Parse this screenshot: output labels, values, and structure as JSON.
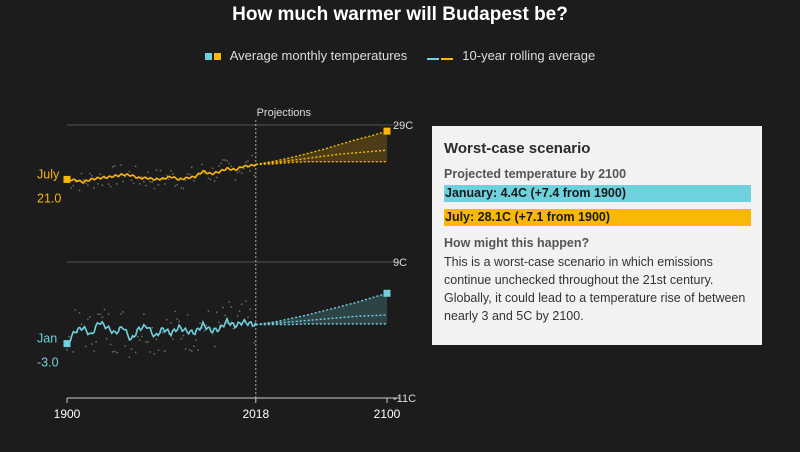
{
  "title": "How much warmer will Budapest be?",
  "legend": {
    "monthly_label": "Average monthly temperatures",
    "rolling_label": "10-year rolling average"
  },
  "colors": {
    "january": "#6fd1de",
    "july": "#f9b707",
    "background": "#1c1c1c",
    "grid": "#555555",
    "box": "#f2f2f2"
  },
  "chart_data": {
    "type": "line",
    "title": "How much warmer will Budapest be?",
    "x_ticks": [
      "1900",
      "2018",
      "2100"
    ],
    "y_tick_labels": [
      "29C",
      "9C",
      "-11C"
    ],
    "projection_label": "Projections",
    "projection_start_year": 2018,
    "series": [
      {
        "name": "July",
        "start_label": "21.0",
        "start_value": 21.0,
        "historical_x": [
          1900,
          1905,
          1910,
          1915,
          1920,
          1925,
          1930,
          1935,
          1940,
          1945,
          1950,
          1955,
          1960,
          1965,
          1970,
          1975,
          1980,
          1985,
          1990,
          1995,
          2000,
          2005,
          2010,
          2015,
          2018
        ],
        "historical_y": [
          21.0,
          20.9,
          20.6,
          21.0,
          21.2,
          21.3,
          21.5,
          21.7,
          21.6,
          21.2,
          21.2,
          21.0,
          21.1,
          21.4,
          21.0,
          21.2,
          21.4,
          22.2,
          21.8,
          22.1,
          22.6,
          22.4,
          22.9,
          23.0,
          23.2
        ],
        "projection_x": [
          2018,
          2030,
          2040,
          2050,
          2060,
          2070,
          2080,
          2090,
          2100
        ],
        "projection_worst": [
          23.2,
          23.7,
          24.2,
          24.8,
          25.4,
          26.1,
          26.8,
          27.4,
          28.1
        ],
        "projection_mid": [
          23.2,
          23.5,
          23.8,
          24.1,
          24.4,
          24.7,
          24.9,
          25.1,
          25.3
        ],
        "projection_low": [
          23.2,
          23.3,
          23.5,
          23.6,
          23.6,
          23.6,
          23.6,
          23.6,
          23.6
        ]
      },
      {
        "name": "Jan",
        "start_label": "-3.0",
        "start_value": -3.0,
        "historical_x": [
          1900,
          1905,
          1910,
          1915,
          1920,
          1925,
          1930,
          1935,
          1940,
          1945,
          1950,
          1955,
          1960,
          1965,
          1970,
          1975,
          1980,
          1985,
          1990,
          1995,
          2000,
          2005,
          2010,
          2015,
          2018
        ],
        "historical_y": [
          -3.0,
          -1.2,
          -0.6,
          -1.8,
          0.2,
          -0.6,
          -1.5,
          -0.5,
          -2.5,
          -0.8,
          -0.4,
          -2.0,
          -0.8,
          -1.5,
          -0.6,
          -1.2,
          -1.4,
          -0.2,
          -1.1,
          -0.9,
          0.3,
          -0.4,
          0.2,
          -0.1,
          -0.2
        ],
        "projection_x": [
          2018,
          2030,
          2040,
          2050,
          2060,
          2070,
          2080,
          2090,
          2100
        ],
        "projection_worst": [
          -0.2,
          0.2,
          0.7,
          1.2,
          1.8,
          2.4,
          3.0,
          3.7,
          4.4
        ],
        "projection_mid": [
          -0.2,
          0.0,
          0.2,
          0.4,
          0.6,
          0.8,
          1.0,
          1.1,
          1.2
        ],
        "projection_low": [
          -0.2,
          -0.2,
          -0.2,
          -0.1,
          -0.1,
          -0.1,
          -0.1,
          -0.1,
          -0.1
        ]
      }
    ]
  },
  "scenario": {
    "title": "Worst-case scenario",
    "subtitle": "Projected temperature by 2100",
    "january": "January: 4.4C (+7.4 from 1900)",
    "july": "July: 28.1C (+7.1 from 1900)",
    "question": "How might this happen?",
    "body": "This is a worst-case scenario in which emissions continue unchecked throughout the 21st century. Globally, it could lead to a temperature rise of between nearly 3 and 5C by 2100."
  }
}
